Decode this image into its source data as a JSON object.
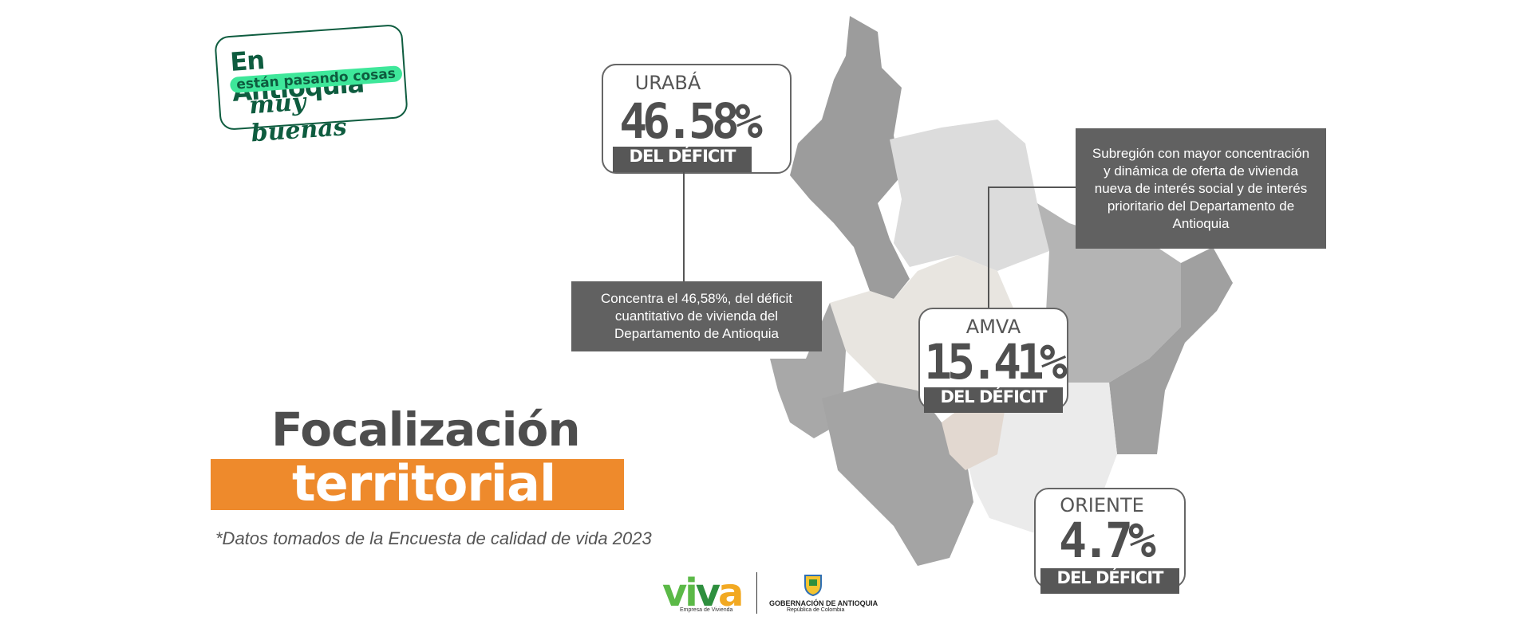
{
  "badge": {
    "line1": "En Antioquia",
    "line2": "están pasando cosas",
    "line3": "muy buenas"
  },
  "title": {
    "line1": "Focalización",
    "line2": "territorial"
  },
  "source_note": "*Datos tomados de la Encuesta de calidad de vida 2023",
  "regions": [
    {
      "name": "URABÁ",
      "percent": "46.58%",
      "tag": "DEL DÉFICIT"
    },
    {
      "name": "AMVA",
      "percent": "15.41%",
      "tag": "DEL DÉFICIT"
    },
    {
      "name": "ORIENTE",
      "percent": "4.7%",
      "tag": "DEL DÉFICIT"
    }
  ],
  "notes": {
    "uraba": "Concentra el 46,58%, del déficit cuantitativo de vivienda del Departamento de Antioquia",
    "amva": "Subregión con mayor concentración y dinámica de oferta de vivienda nueva de interés social y de interés prioritario del Departamento de Antioquia"
  },
  "footer": {
    "viva": {
      "v1": "vi",
      "v2": "v",
      "v3": "a",
      "subtitle": "Empresa de Vivienda"
    },
    "gobernacion": {
      "line1": "GOBERNACIÓN DE ANTIOQUIA",
      "line2": "República de Colombia"
    }
  },
  "colors": {
    "accent": "#ee8a2c",
    "brand_green": "#0e5c3f",
    "badge_highlight": "#3ee79a",
    "callout_dark": "#575757",
    "info_box": "#616161"
  }
}
